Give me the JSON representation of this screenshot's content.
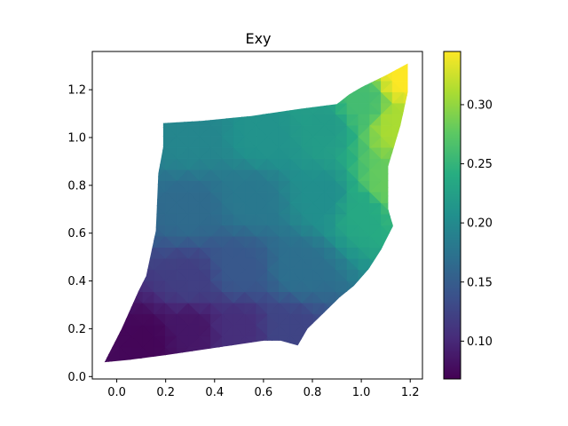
{
  "chart_data": {
    "type": "heatmap",
    "subtype": "tripcolor-mesh",
    "title": "Exy",
    "xlabel": "",
    "ylabel": "",
    "xlim": [
      -0.1,
      1.25
    ],
    "ylim": [
      -0.01,
      1.36
    ],
    "x_ticks": [
      0.0,
      0.2,
      0.4,
      0.6,
      0.8,
      1.0,
      1.2
    ],
    "x_tick_labels": [
      "0.0",
      "0.2",
      "0.4",
      "0.6",
      "0.8",
      "1.0",
      "1.2"
    ],
    "y_ticks": [
      0.0,
      0.2,
      0.4,
      0.6,
      0.8,
      1.0,
      1.2
    ],
    "y_tick_labels": [
      "0.0",
      "0.2",
      "0.4",
      "0.6",
      "0.8",
      "1.0",
      "1.2"
    ],
    "grid": false,
    "colormap": "viridis",
    "colorbar": {
      "vmin": 0.068,
      "vmax": 0.345,
      "ticks": [
        0.1,
        0.15,
        0.2,
        0.25,
        0.3
      ],
      "tick_labels": [
        "0.10",
        "0.15",
        "0.20",
        "0.25",
        "0.30"
      ]
    },
    "boundary": [
      [
        -0.05,
        0.06
      ],
      [
        0.02,
        0.2
      ],
      [
        0.09,
        0.36
      ],
      [
        0.12,
        0.42
      ],
      [
        0.16,
        0.61
      ],
      [
        0.17,
        0.85
      ],
      [
        0.19,
        0.96
      ],
      [
        0.19,
        1.06
      ],
      [
        0.35,
        1.07
      ],
      [
        0.55,
        1.09
      ],
      [
        0.75,
        1.12
      ],
      [
        0.9,
        1.14
      ],
      [
        0.95,
        1.18
      ],
      [
        1.0,
        1.21
      ],
      [
        1.1,
        1.26
      ],
      [
        1.19,
        1.31
      ],
      [
        1.19,
        1.19
      ],
      [
        1.16,
        1.05
      ],
      [
        1.11,
        0.88
      ],
      [
        1.11,
        0.7
      ],
      [
        1.13,
        0.63
      ],
      [
        1.08,
        0.53
      ],
      [
        1.03,
        0.45
      ],
      [
        0.97,
        0.38
      ],
      [
        0.91,
        0.33
      ],
      [
        0.85,
        0.27
      ],
      [
        0.78,
        0.2
      ],
      [
        0.74,
        0.13
      ],
      [
        0.67,
        0.15
      ],
      [
        0.6,
        0.15
      ],
      [
        0.4,
        0.12
      ],
      [
        0.2,
        0.09
      ],
      [
        0.05,
        0.07
      ],
      [
        -0.05,
        0.06
      ]
    ],
    "field_samples": [
      {
        "x": 0.12,
        "y": 0.15,
        "value": 0.072
      },
      {
        "x": 0.3,
        "y": 0.2,
        "value": 0.085
      },
      {
        "x": 0.5,
        "y": 0.2,
        "value": 0.105
      },
      {
        "x": 0.7,
        "y": 0.2,
        "value": 0.125
      },
      {
        "x": 0.3,
        "y": 0.4,
        "value": 0.12
      },
      {
        "x": 0.5,
        "y": 0.45,
        "value": 0.145
      },
      {
        "x": 0.75,
        "y": 0.45,
        "value": 0.17
      },
      {
        "x": 0.3,
        "y": 0.7,
        "value": 0.165
      },
      {
        "x": 0.55,
        "y": 0.75,
        "value": 0.18
      },
      {
        "x": 0.85,
        "y": 0.75,
        "value": 0.205
      },
      {
        "x": 0.3,
        "y": 1.0,
        "value": 0.195
      },
      {
        "x": 0.6,
        "y": 1.0,
        "value": 0.21
      },
      {
        "x": 0.85,
        "y": 1.05,
        "value": 0.22
      },
      {
        "x": 1.0,
        "y": 1.15,
        "value": 0.26
      },
      {
        "x": 1.0,
        "y": 0.7,
        "value": 0.235
      },
      {
        "x": 1.1,
        "y": 0.8,
        "value": 0.28
      },
      {
        "x": 1.15,
        "y": 1.05,
        "value": 0.31
      },
      {
        "x": 1.18,
        "y": 1.25,
        "value": 0.345
      }
    ]
  }
}
